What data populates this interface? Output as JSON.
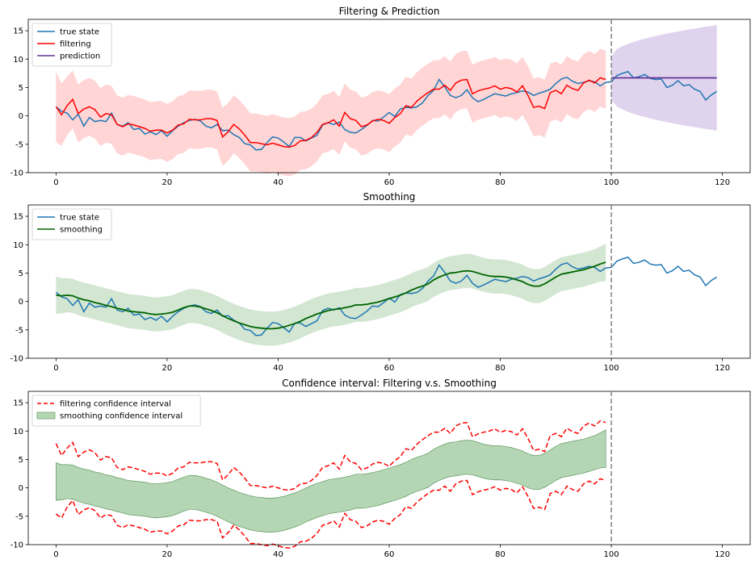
{
  "colors": {
    "true_state": "#1f77b4",
    "filtering": "#ff0000",
    "filtering_band": "#ffb3b3",
    "prediction": "#663399",
    "prediction_band": "#d8c8e8",
    "smoothing": "#006400",
    "smoothing_band": "#9bc89b",
    "vline": "#808080"
  },
  "chart_data": [
    {
      "type": "line",
      "title": "Filtering & Prediction",
      "xlim": [
        -5,
        125
      ],
      "ylim": [
        -10,
        17
      ],
      "xticks": [
        0,
        20,
        40,
        60,
        80,
        100,
        120
      ],
      "yticks": [
        -10,
        -5,
        0,
        5,
        10,
        15
      ],
      "vline": 100,
      "legend": [
        "true state",
        "filtering",
        "prediction"
      ],
      "legend_position": "upper-left"
    },
    {
      "type": "line",
      "title": "Smoothing",
      "xlim": [
        -5,
        125
      ],
      "ylim": [
        -10,
        17
      ],
      "xticks": [
        0,
        20,
        40,
        60,
        80,
        100,
        120
      ],
      "yticks": [
        -10,
        -5,
        0,
        5,
        10,
        15
      ],
      "vline": 100,
      "legend": [
        "true state",
        "smoothing"
      ],
      "legend_position": "upper-left"
    },
    {
      "type": "area",
      "title": "Confidence interval: Filtering v.s. Smoothing",
      "xlim": [
        -5,
        125
      ],
      "ylim": [
        -10,
        17
      ],
      "xticks": [
        0,
        20,
        40,
        60,
        80,
        100,
        120
      ],
      "yticks": [
        -10,
        -5,
        0,
        5,
        10,
        15
      ],
      "vline": 100,
      "legend": [
        "filtering confidence interval",
        "smoothing confidence interval"
      ],
      "legend_position": "upper-left"
    }
  ],
  "series": {
    "true_state": [
      1.6,
      0.8,
      0.5,
      -0.7,
      0.3,
      -1.8,
      -0.3,
      -1,
      -0.8,
      -1,
      0.5,
      -1.5,
      -1.8,
      -1.2,
      -2.4,
      -2.2,
      -3.2,
      -2.8,
      -3.3,
      -2.6,
      -3.6,
      -2.6,
      -1.8,
      -1.2,
      -0.8,
      -0.6,
      -0.9,
      -1.8,
      -2.1,
      -1.5,
      -2.6,
      -2.5,
      -3.3,
      -3.8,
      -4.9,
      -5.1,
      -6.0,
      -5.9,
      -4.7,
      -3.7,
      -3.9,
      -4.6,
      -5.4,
      -3.8,
      -3.8,
      -4.4,
      -3.9,
      -3.4,
      -1.6,
      -1.2,
      -1.5,
      -1.1,
      -2.4,
      -2.9,
      -3.0,
      -2.4,
      -1.7,
      -0.8,
      -0.9,
      -0.2,
      0.6,
      -0.1,
      1.2,
      1.5,
      1.4,
      1.6,
      2.3,
      3.6,
      4.5,
      6.4,
      5.1,
      3.6,
      3.2,
      3.6,
      4.6,
      3.2,
      2.5,
      2.9,
      3.4,
      3.9,
      3.7,
      3.5,
      3.9,
      4.1,
      4.4,
      4.2,
      3.6,
      4.0,
      4.3,
      4.7,
      5.7,
      6.5,
      6.8,
      6.1,
      5.7,
      5.9,
      6.2,
      6.0,
      5.3,
      5.9,
      6.0,
      7.1,
      7.5,
      7.8,
      6.7,
      6.9,
      7.3,
      6.6,
      6.4,
      6.5,
      5.0,
      5.4,
      6.2,
      5.3,
      5.5,
      4.7,
      4.3,
      2.8,
      3.7,
      4.3
    ],
    "filtering": [
      1.6,
      0.2,
      1.8,
      2.9,
      0.4,
      1.2,
      1.6,
      1.1,
      -0.2,
      0.4,
      0.2,
      -1.5,
      -1.9,
      -1.4,
      -1.6,
      -1.9,
      -2.2,
      -2.7,
      -2.5,
      -2.5,
      -3.0,
      -2.5,
      -1.6,
      -1.4,
      -0.6,
      -0.7,
      -0.7,
      -0.5,
      -0.5,
      -0.8,
      -3.7,
      -2.8,
      -1.5,
      -2.3,
      -3.4,
      -4.7,
      -4.7,
      -4.9,
      -5.1,
      -4.8,
      -5.1,
      -5.4,
      -5.5,
      -5.2,
      -4.4,
      -4.3,
      -3.8,
      -2.9,
      -1.5,
      -1.2,
      -0.7,
      -1.8,
      0.6,
      -0.5,
      -0.8,
      -1.9,
      -1.6,
      -0.9,
      -0.6,
      -0.8,
      -1.3,
      -0.3,
      0.4,
      1.8,
      1.5,
      2.6,
      3.4,
      4.1,
      4.7,
      4.7,
      5.4,
      4.5,
      5.8,
      6.3,
      6.4,
      3.9,
      4.4,
      4.7,
      4.9,
      5.3,
      4.7,
      5.0,
      4.8,
      4.2,
      5.3,
      3.6,
      1.5,
      1.7,
      1.3,
      4.1,
      4.5,
      3.9,
      5.4,
      4.8,
      4.5,
      5.8,
      6.3,
      5.8,
      6.7,
      6.4
    ],
    "filtering_half_width": [
      6.2,
      5.5,
      5.2,
      5.1,
      5.1,
      5.1,
      5.1,
      5.1,
      5.1,
      5.1,
      5.1,
      5.1,
      5.1,
      5.1,
      5.1,
      5.1,
      5.1,
      5.1,
      5.1,
      5.1,
      5.1,
      5.1,
      5.1,
      5.1,
      5.1,
      5.1,
      5.1,
      5.1,
      5.1,
      5.1,
      5.1,
      5.1,
      5.1,
      5.1,
      5.1,
      5.1,
      5.1,
      5.1,
      5.1,
      5.1,
      5.1,
      5.1,
      5.1,
      5.1,
      5.1,
      5.1,
      5.1,
      5.1,
      5.1,
      5.1,
      5.1,
      5.1,
      5.1,
      5.1,
      5.1,
      5.1,
      5.1,
      5.1,
      5.1,
      5.1,
      5.1,
      5.1,
      5.1,
      5.1,
      5.1,
      5.1,
      5.1,
      5.1,
      5.1,
      5.1,
      5.1,
      5.1,
      5.1,
      5.1,
      5.1,
      5.1,
      5.1,
      5.1,
      5.1,
      5.1,
      5.1,
      5.1,
      5.1,
      5.1,
      5.1,
      5.1,
      5.1,
      5.1,
      5.1,
      5.1,
      5.1,
      5.1,
      5.1,
      5.1,
      5.1,
      5.1,
      5.1,
      5.1,
      5.1,
      5.1
    ],
    "smoothing": [
      1.1,
      1.0,
      1.1,
      1.0,
      0.6,
      0.3,
      0.1,
      -0.2,
      -0.4,
      -0.7,
      -0.9,
      -1.2,
      -1.4,
      -1.7,
      -1.8,
      -1.9,
      -2.0,
      -2.2,
      -2.3,
      -2.2,
      -2.1,
      -1.9,
      -1.5,
      -1.1,
      -0.8,
      -0.8,
      -1.0,
      -1.3,
      -1.6,
      -2.0,
      -2.5,
      -3.0,
      -3.4,
      -3.8,
      -4.1,
      -4.4,
      -4.6,
      -4.7,
      -4.8,
      -4.8,
      -4.7,
      -4.5,
      -4.2,
      -3.9,
      -3.5,
      -3.0,
      -2.6,
      -2.2,
      -1.9,
      -1.6,
      -1.4,
      -1.3,
      -1.1,
      -0.9,
      -0.6,
      -0.6,
      -0.5,
      -0.3,
      -0.1,
      0.2,
      0.5,
      0.8,
      1.1,
      1.5,
      2.0,
      2.4,
      2.7,
      3.1,
      3.8,
      4.3,
      4.7,
      5.0,
      5.1,
      5.3,
      5.4,
      5.3,
      5.0,
      4.7,
      4.5,
      4.4,
      4.4,
      4.3,
      4.1,
      3.8,
      3.5,
      3.0,
      2.7,
      2.7,
      3.1,
      3.7,
      4.3,
      4.8,
      5.0,
      5.2,
      5.4,
      5.6,
      5.9,
      6.2,
      6.6,
      6.9
    ],
    "smoothing_half_width": [
      3.3,
      3.1,
      3.0,
      3.0,
      3.0,
      3.0,
      3.0,
      3.0,
      3.0,
      3.0,
      3.0,
      3.0,
      3.0,
      3.0,
      3.0,
      3.0,
      3.0,
      3.0,
      3.0,
      3.0,
      3.0,
      3.0,
      3.0,
      3.0,
      3.0,
      3.0,
      3.0,
      3.0,
      3.0,
      3.0,
      3.0,
      3.0,
      3.0,
      3.0,
      3.0,
      3.0,
      3.0,
      3.0,
      3.0,
      3.0,
      3.0,
      3.0,
      3.0,
      3.0,
      3.0,
      3.0,
      3.0,
      3.0,
      3.0,
      3.0,
      3.0,
      3.0,
      3.0,
      3.0,
      3.0,
      3.0,
      3.0,
      3.0,
      3.0,
      3.0,
      3.0,
      3.0,
      3.0,
      3.0,
      3.0,
      3.0,
      3.0,
      3.0,
      3.0,
      3.0,
      3.0,
      3.0,
      3.0,
      3.0,
      3.0,
      3.0,
      3.0,
      3.0,
      3.0,
      3.0,
      3.0,
      3.0,
      3.0,
      3.0,
      3.0,
      3.0,
      3.0,
      3.0,
      3.0,
      3.0,
      3.0,
      3.0,
      3.0,
      3.0,
      3.0,
      3.0,
      3.0,
      3.0,
      3.1,
      3.3
    ],
    "prediction": {
      "x_start": 100,
      "x_end": 119,
      "value": 6.7,
      "upper_end": 16.0,
      "lower_end": -2.6,
      "upper_start": 10.5,
      "lower_start": 2.9
    }
  }
}
